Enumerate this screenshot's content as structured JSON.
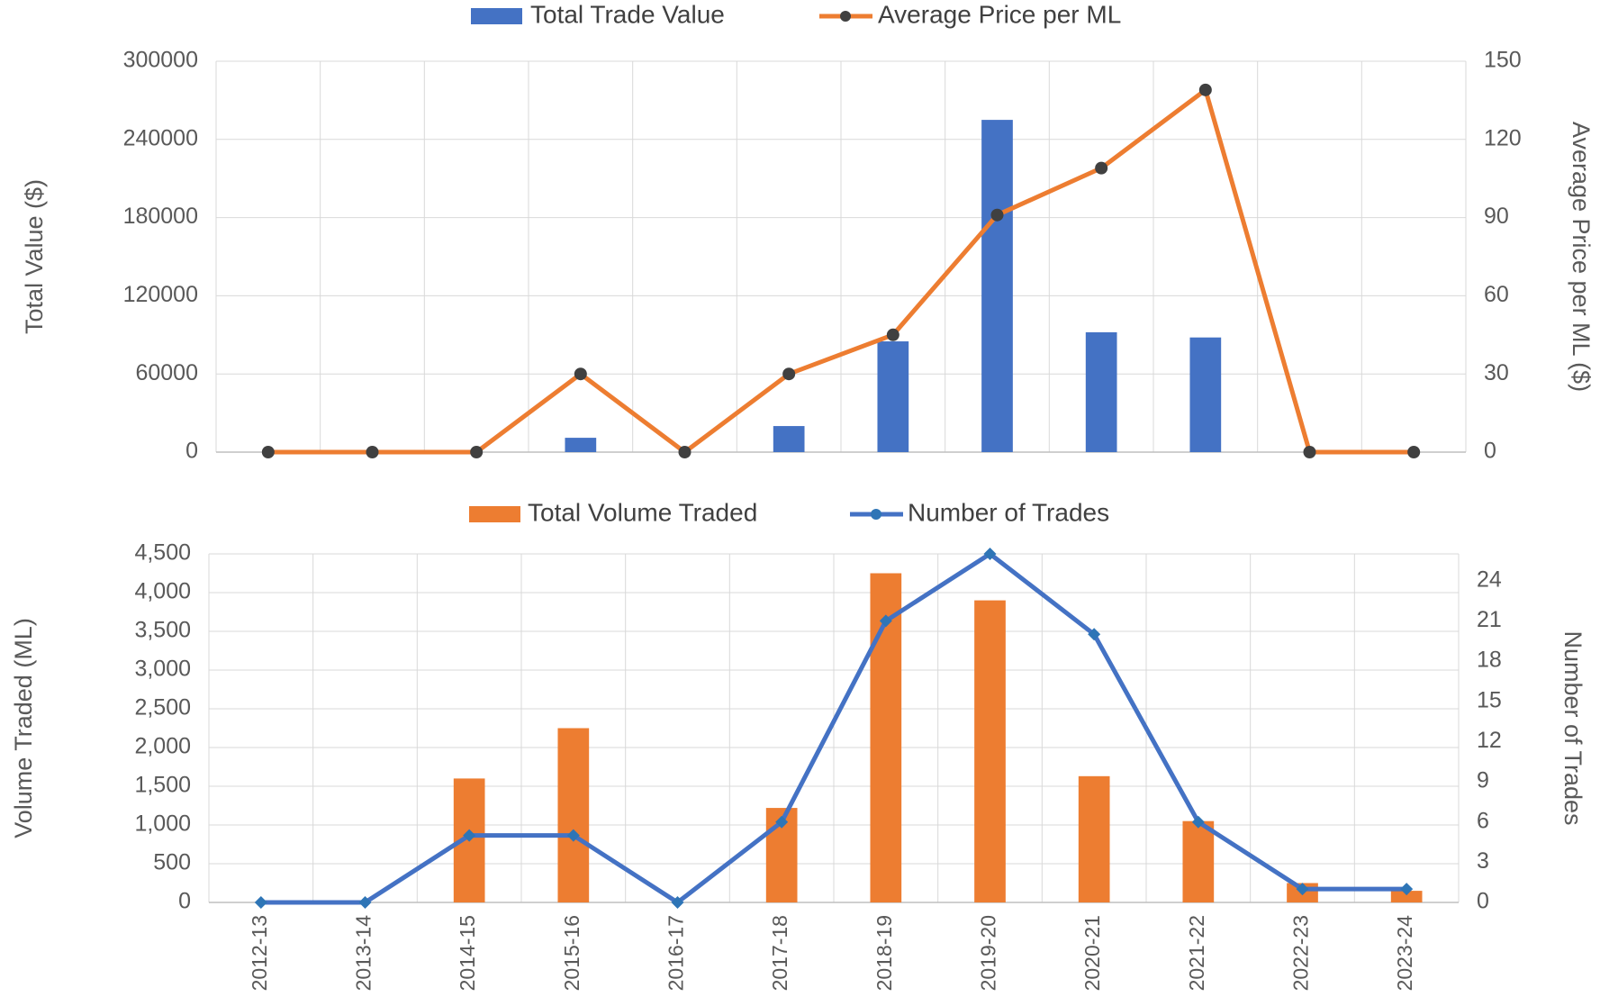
{
  "chart_data": [
    {
      "type": "combo",
      "series": [
        {
          "name": "Total Trade Value",
          "type": "bar",
          "color": "#4472c4",
          "values": [
            0,
            0,
            0,
            11000,
            0,
            20000,
            85000,
            255000,
            92000,
            88000,
            0,
            0
          ]
        },
        {
          "name": "Average Price per ML",
          "type": "line",
          "axis": "y2",
          "color": "#ed7d31",
          "marker": "circle",
          "marker_color": "#404040",
          "values": [
            0,
            0,
            0,
            30,
            0,
            30,
            45,
            91,
            109,
            139,
            0,
            0
          ]
        }
      ],
      "ylabel": "Total Value ($)",
      "y2label": "Average Price per ML ($)",
      "ylim": [
        0,
        300000
      ],
      "yticks": [
        0,
        60000,
        120000,
        180000,
        240000,
        300000
      ],
      "y2lim": [
        0,
        150
      ],
      "y2ticks": [
        0,
        30,
        60,
        90,
        120,
        150
      ],
      "grid": true
    },
    {
      "type": "combo",
      "categories": [
        "2012-13",
        "2013-14",
        "2014-15",
        "2015-16",
        "2016-17",
        "2017-18",
        "2018-19",
        "2019-20",
        "2020-21",
        "2021-22",
        "2022-23",
        "2023-24"
      ],
      "series": [
        {
          "name": "Total Volume Traded",
          "type": "bar",
          "color": "#ed7d31",
          "values": [
            0,
            0,
            1600,
            2250,
            0,
            1220,
            4250,
            3900,
            1630,
            1050,
            250,
            150
          ]
        },
        {
          "name": "Number of Trades",
          "type": "line",
          "axis": "y2",
          "color": "#4472c4",
          "marker": "diamond",
          "marker_color": "#2e75b6",
          "values": [
            0,
            0,
            5,
            5,
            0,
            6,
            21,
            26,
            20,
            6,
            1,
            1
          ]
        }
      ],
      "ylabel": "Volume Traded (ML)",
      "y2label": "Number of Trades",
      "ylim": [
        0,
        4500
      ],
      "yticks": [
        0,
        500,
        {
          "value": 1000,
          "label": "1,000"
        },
        {
          "value": 1500,
          "label": "1,500"
        },
        {
          "value": 2000,
          "label": "2,000"
        },
        {
          "value": 2500,
          "label": "2,500"
        },
        {
          "value": 3000,
          "label": "3,000"
        },
        {
          "value": 3500,
          "label": "3,500"
        },
        {
          "value": 4000,
          "label": "4,000"
        },
        {
          "value": 4500,
          "label": "4,500"
        }
      ],
      "y2lim": [
        0,
        26
      ],
      "y2ticks": [
        0,
        3,
        6,
        9,
        12,
        15,
        18,
        21,
        24
      ],
      "grid": true
    }
  ]
}
